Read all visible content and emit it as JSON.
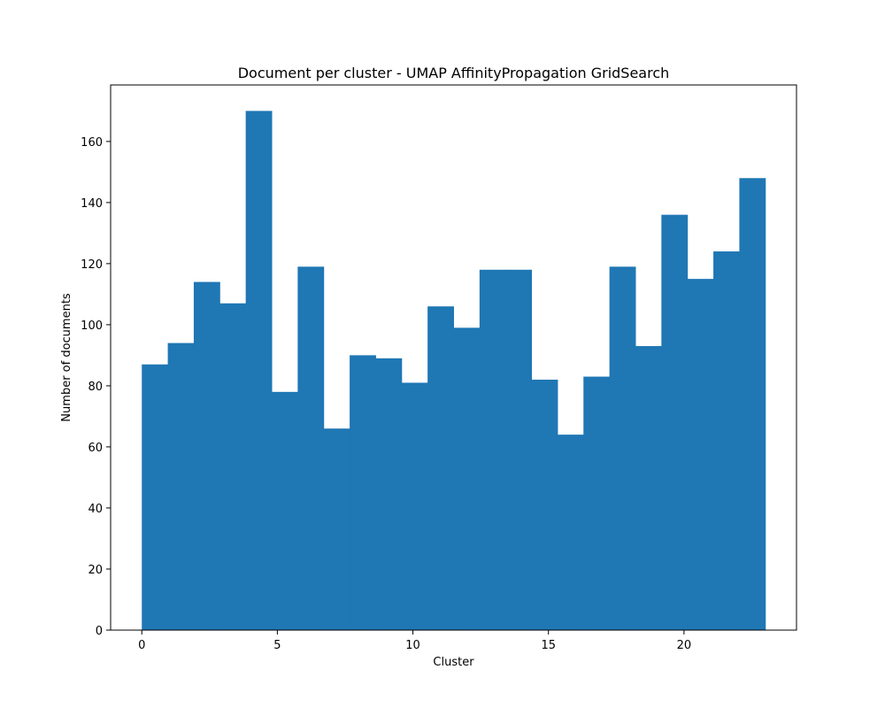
{
  "chart_data": {
    "type": "bar",
    "title": "Document per cluster - UMAP AffinityPropagation GridSearch",
    "xlabel": "Cluster",
    "ylabel": "Number of documents",
    "bar_color": "#1f77b4",
    "xlim": [
      -1.15,
      24.15
    ],
    "ylim": [
      0,
      178.5
    ],
    "xticks": [
      0,
      5,
      10,
      15,
      20
    ],
    "yticks": [
      0,
      20,
      40,
      60,
      80,
      100,
      120,
      140,
      160
    ],
    "bin_edges": [
      0,
      0.9583,
      1.9167,
      2.875,
      3.8333,
      4.7917,
      5.75,
      6.7083,
      7.6667,
      8.625,
      9.5833,
      10.5417,
      11.5,
      12.4583,
      13.4167,
      14.375,
      15.3333,
      16.2917,
      17.25,
      18.2083,
      19.1667,
      20.125,
      21.0833,
      22.0417,
      23
    ],
    "values": [
      87,
      94,
      114,
      107,
      170,
      78,
      119,
      66,
      90,
      89,
      81,
      106,
      99,
      118,
      118,
      82,
      64,
      83,
      119,
      93,
      136,
      115,
      124,
      148
    ],
    "grid": false,
    "legend": false
  }
}
